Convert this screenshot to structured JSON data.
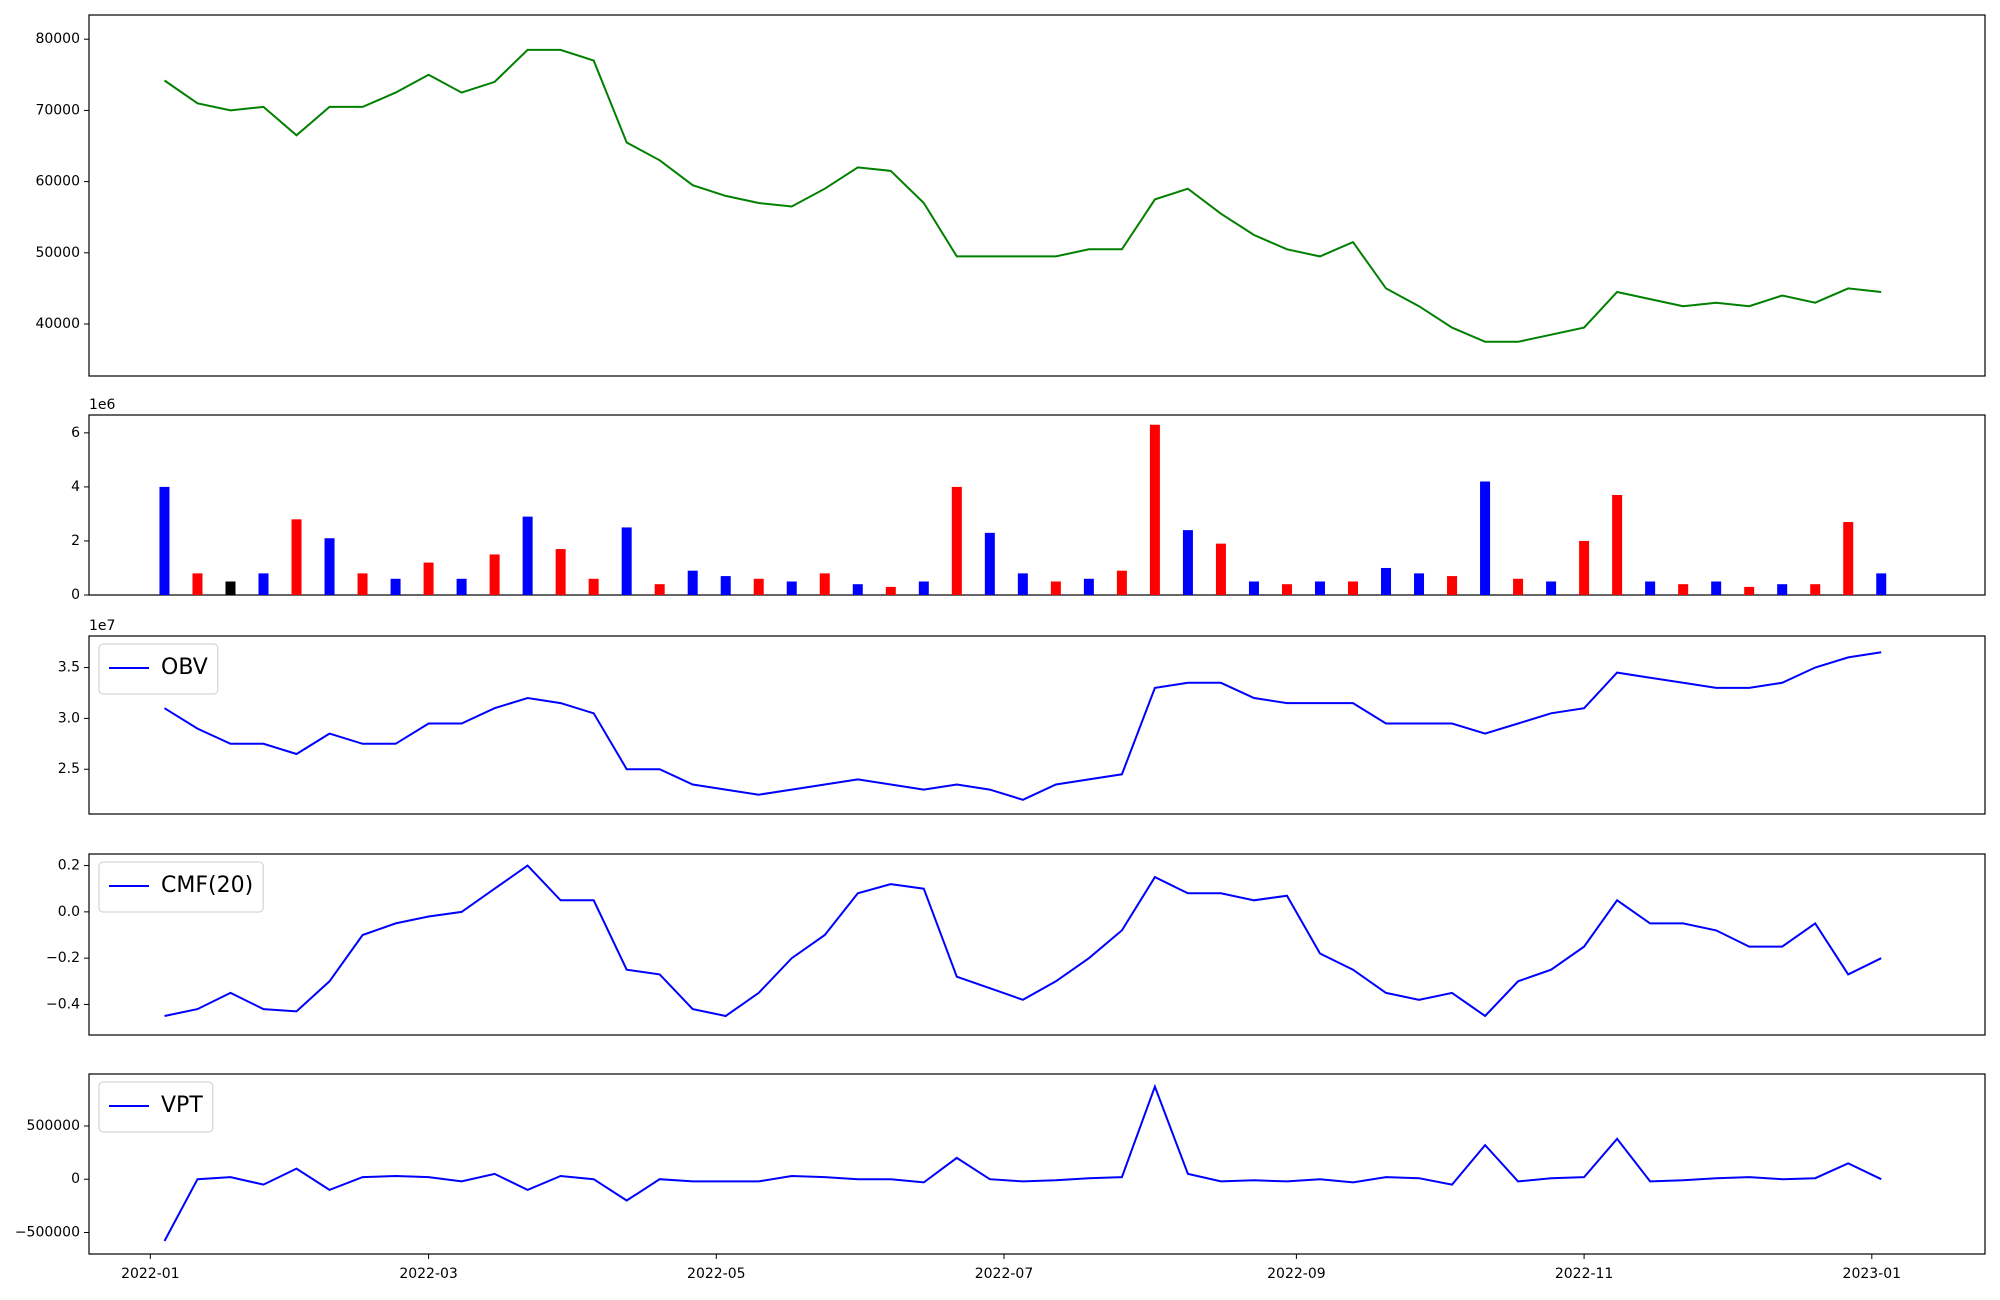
{
  "chart_data": [
    {
      "type": "line",
      "x": [
        18996,
        19003,
        19010,
        19017,
        19024,
        19031,
        19038,
        19045,
        19052,
        19059,
        19066,
        19073,
        19080,
        19087,
        19094,
        19101,
        19108,
        19115,
        19122,
        19129,
        19136,
        19143,
        19150,
        19157,
        19164,
        19171,
        19178,
        19185,
        19192,
        19199,
        19206,
        19213,
        19220,
        19227,
        19234,
        19241,
        19248,
        19255,
        19262,
        19269,
        19276,
        19283,
        19290,
        19297,
        19304,
        19311,
        19318,
        19325,
        19332,
        19339,
        19346,
        19353,
        19360
      ],
      "series": [
        {
          "color": "#008000",
          "values": [
            74200,
            71000,
            70000,
            70500,
            66500,
            70500,
            70500,
            72500,
            75000,
            72500,
            74000,
            78500,
            78500,
            77000,
            65500,
            63000,
            59500,
            58000,
            57000,
            56500,
            59000,
            62000,
            61500,
            57000,
            49500,
            49500,
            49500,
            49500,
            50500,
            50500,
            57500,
            59000,
            55500,
            52500,
            50500,
            49500,
            51500,
            45000,
            42500,
            39500,
            37500,
            37500,
            38500,
            39500,
            44500,
            43500,
            42500,
            43000,
            42500,
            44000,
            43000,
            45000,
            44500
          ]
        }
      ],
      "xlim": [
        18980,
        19382
      ],
      "ylim": [
        32700,
        83400
      ],
      "yticks": [
        40000,
        50000,
        60000,
        70000,
        80000
      ]
    },
    {
      "type": "bar",
      "x": [
        18996,
        19003,
        19010,
        19017,
        19024,
        19031,
        19038,
        19045,
        19052,
        19059,
        19066,
        19073,
        19080,
        19087,
        19094,
        19101,
        19108,
        19115,
        19122,
        19129,
        19136,
        19143,
        19150,
        19157,
        19164,
        19171,
        19178,
        19185,
        19192,
        19199,
        19206,
        19213,
        19220,
        19227,
        19234,
        19241,
        19248,
        19255,
        19262,
        19269,
        19276,
        19283,
        19290,
        19297,
        19304,
        19311,
        19318,
        19325,
        19332,
        19339,
        19346,
        19353,
        19360
      ],
      "values": [
        4.0,
        0.8,
        0.5,
        0.8,
        2.8,
        2.1,
        0.8,
        0.6,
        1.2,
        0.6,
        1.5,
        2.9,
        1.7,
        0.6,
        2.5,
        0.4,
        0.9,
        0.7,
        0.6,
        0.5,
        0.8,
        0.4,
        0.3,
        0.5,
        4.0,
        2.3,
        0.8,
        0.5,
        0.6,
        0.9,
        6.3,
        2.4,
        1.9,
        0.5,
        0.4,
        0.5,
        0.5,
        1.0,
        0.8,
        0.7,
        4.2,
        0.6,
        0.5,
        2.0,
        3.7,
        0.5,
        0.4,
        0.5,
        0.3,
        0.4,
        0.4,
        2.7,
        0.8
      ],
      "colors": [
        "#0000ff",
        "#ff0000",
        "#000000",
        "#0000ff",
        "#ff0000",
        "#0000ff",
        "#ff0000",
        "#0000ff",
        "#ff0000",
        "#0000ff",
        "#ff0000",
        "#0000ff",
        "#ff0000",
        "#ff0000",
        "#0000ff",
        "#ff0000",
        "#0000ff",
        "#0000ff",
        "#ff0000",
        "#0000ff",
        "#ff0000",
        "#0000ff",
        "#ff0000",
        "#0000ff",
        "#ff0000",
        "#0000ff",
        "#0000ff",
        "#ff0000",
        "#0000ff",
        "#ff0000",
        "#ff0000",
        "#0000ff",
        "#ff0000",
        "#0000ff",
        "#ff0000",
        "#0000ff",
        "#ff0000",
        "#0000ff",
        "#0000ff",
        "#ff0000",
        "#0000ff",
        "#ff0000",
        "#0000ff",
        "#ff0000",
        "#ff0000",
        "#0000ff",
        "#ff0000",
        "#0000ff",
        "#ff0000",
        "#0000ff",
        "#ff0000",
        "#ff0000",
        "#0000ff"
      ],
      "xlim": [
        18980,
        19382
      ],
      "ylim": [
        0,
        6.66
      ],
      "yticks": [
        0,
        2,
        4,
        6
      ],
      "y_offset_label": "1e6"
    },
    {
      "type": "line",
      "x": [
        18996,
        19003,
        19010,
        19017,
        19024,
        19031,
        19038,
        19045,
        19052,
        19059,
        19066,
        19073,
        19080,
        19087,
        19094,
        19101,
        19108,
        19115,
        19122,
        19129,
        19136,
        19143,
        19150,
        19157,
        19164,
        19171,
        19178,
        19185,
        19192,
        19199,
        19206,
        19213,
        19220,
        19227,
        19234,
        19241,
        19248,
        19255,
        19262,
        19269,
        19276,
        19283,
        19290,
        19297,
        19304,
        19311,
        19318,
        19325,
        19332,
        19339,
        19346,
        19353,
        19360
      ],
      "series": [
        {
          "name": "OBV",
          "color": "#0000ff",
          "values": [
            3.1,
            2.9,
            2.75,
            2.75,
            2.65,
            2.85,
            2.75,
            2.75,
            2.95,
            2.95,
            3.1,
            3.2,
            3.15,
            3.05,
            2.5,
            2.5,
            2.35,
            2.3,
            2.25,
            2.3,
            2.35,
            2.4,
            2.35,
            2.3,
            2.35,
            2.3,
            2.2,
            2.35,
            2.4,
            2.45,
            3.3,
            3.35,
            3.35,
            3.2,
            3.15,
            3.15,
            3.15,
            2.95,
            2.95,
            2.95,
            2.85,
            2.95,
            3.05,
            3.1,
            3.45,
            3.4,
            3.35,
            3.3,
            3.3,
            3.35,
            3.5,
            3.6,
            3.65
          ]
        }
      ],
      "xlim": [
        18980,
        19382
      ],
      "ylim": [
        2.06,
        3.81
      ],
      "yticks": [
        {
          "value": 2.5,
          "label": "2.5"
        },
        {
          "value": 3,
          "label": "3.0"
        },
        {
          "value": 3.5,
          "label": "3.5"
        }
      ],
      "y_offset_label": "1e7",
      "legend": "upper left"
    },
    {
      "type": "line",
      "x": [
        18996,
        19003,
        19010,
        19017,
        19024,
        19031,
        19038,
        19045,
        19052,
        19059,
        19066,
        19073,
        19080,
        19087,
        19094,
        19101,
        19108,
        19115,
        19122,
        19129,
        19136,
        19143,
        19150,
        19157,
        19164,
        19171,
        19178,
        19185,
        19192,
        19199,
        19206,
        19213,
        19220,
        19227,
        19234,
        19241,
        19248,
        19255,
        19262,
        19269,
        19276,
        19283,
        19290,
        19297,
        19304,
        19311,
        19318,
        19325,
        19332,
        19339,
        19346,
        19353,
        19360
      ],
      "series": [
        {
          "name": "CMF(20)",
          "color": "#0000ff",
          "values": [
            -0.45,
            -0.42,
            -0.35,
            -0.42,
            -0.43,
            -0.3,
            -0.1,
            -0.05,
            -0.02,
            0.0,
            0.1,
            0.2,
            0.05,
            0.05,
            -0.25,
            -0.27,
            -0.42,
            -0.45,
            -0.35,
            -0.2,
            -0.1,
            0.08,
            0.12,
            0.1,
            -0.28,
            -0.33,
            -0.38,
            -0.3,
            -0.2,
            -0.08,
            0.15,
            0.08,
            0.08,
            0.05,
            0.07,
            -0.18,
            -0.25,
            -0.35,
            -0.38,
            -0.35,
            -0.45,
            -0.3,
            -0.25,
            -0.15,
            0.05,
            -0.05,
            -0.05,
            -0.08,
            -0.15,
            -0.15,
            -0.05,
            -0.27,
            -0.2
          ]
        }
      ],
      "xlim": [
        18980,
        19382
      ],
      "ylim": [
        -0.532,
        0.25
      ],
      "yticks": [
        {
          "value": -0.4,
          "label": "−0.4"
        },
        {
          "value": -0.2,
          "label": "−0.2"
        },
        {
          "value": 0,
          "label": "0.0"
        },
        0.2
      ],
      "legend": "upper left"
    },
    {
      "type": "line",
      "x": [
        18996,
        19003,
        19010,
        19017,
        19024,
        19031,
        19038,
        19045,
        19052,
        19059,
        19066,
        19073,
        19080,
        19087,
        19094,
        19101,
        19108,
        19115,
        19122,
        19129,
        19136,
        19143,
        19150,
        19157,
        19164,
        19171,
        19178,
        19185,
        19192,
        19199,
        19206,
        19213,
        19220,
        19227,
        19234,
        19241,
        19248,
        19255,
        19262,
        19269,
        19276,
        19283,
        19290,
        19297,
        19304,
        19311,
        19318,
        19325,
        19332,
        19339,
        19346,
        19353,
        19360
      ],
      "series": [
        {
          "name": "VPT",
          "color": "#0000ff",
          "values": [
            -580000,
            0,
            20000,
            -50000,
            100000,
            -100000,
            20000,
            30000,
            20000,
            -20000,
            50000,
            -100000,
            30000,
            0,
            -200000,
            0,
            -20000,
            -20000,
            -20000,
            30000,
            20000,
            0,
            0,
            -30000,
            200000,
            0,
            -20000,
            -10000,
            10000,
            20000,
            870000,
            50000,
            -20000,
            -10000,
            -20000,
            0,
            -30000,
            20000,
            10000,
            -50000,
            320000,
            -20000,
            10000,
            20000,
            380000,
            -20000,
            -10000,
            10000,
            20000,
            0,
            10000,
            150000,
            0
          ]
        }
      ],
      "xlim": [
        18980,
        19382
      ],
      "ylim": [
        -702000,
        988000
      ],
      "yticks": [
        {
          "value": -500000,
          "label": "−500000"
        },
        0,
        500000
      ],
      "legend": "upper left",
      "xticks": [
        {
          "value": 18993,
          "label": "2022-01"
        },
        {
          "value": 19052,
          "label": "2022-03"
        },
        {
          "value": 19113,
          "label": "2022-05"
        },
        {
          "value": 19174,
          "label": "2022-07"
        },
        {
          "value": 19236,
          "label": "2022-09"
        },
        {
          "value": 19297,
          "label": "2022-11"
        },
        {
          "value": 19358,
          "label": "2023-01"
        }
      ]
    }
  ]
}
